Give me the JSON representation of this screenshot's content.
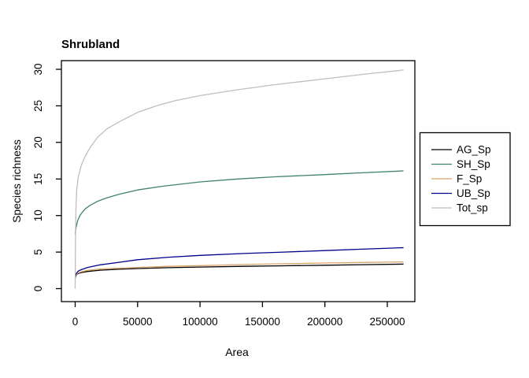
{
  "figure": {
    "title": "Shrubland",
    "xlabel": "Area",
    "ylabel": "Species richness",
    "background": "#ffffff",
    "axis_color": "#000000",
    "text_color": "#000000"
  },
  "chart_data": {
    "type": "line",
    "title": "Shrubland",
    "xlabel": "Area",
    "ylabel": "Species richness",
    "xlim": [
      0,
      263000
    ],
    "ylim": [
      0,
      30
    ],
    "x_ticks": [
      0,
      50000,
      100000,
      150000,
      200000,
      250000
    ],
    "x_tick_labels": [
      "0",
      "50000",
      "100000",
      "150000",
      "200000",
      "250000"
    ],
    "y_ticks": [
      0,
      5,
      10,
      15,
      20,
      25,
      30
    ],
    "y_tick_labels": [
      "0",
      "5",
      "10",
      "15",
      "20",
      "25",
      "30"
    ],
    "grid": false,
    "legend_position": "right-outside",
    "series": [
      {
        "name": "AG_Sp",
        "color": "#000000",
        "points": [
          [
            100,
            1.45
          ],
          [
            500,
            1.75
          ],
          [
            1000,
            1.9
          ],
          [
            2500,
            2.08
          ],
          [
            5000,
            2.2
          ],
          [
            10000,
            2.35
          ],
          [
            20000,
            2.52
          ],
          [
            35000,
            2.65
          ],
          [
            50000,
            2.75
          ],
          [
            75000,
            2.87
          ],
          [
            100000,
            2.95
          ],
          [
            135000,
            3.05
          ],
          [
            167000,
            3.12
          ],
          [
            200000,
            3.2
          ],
          [
            230000,
            3.28
          ],
          [
            263000,
            3.35
          ]
        ]
      },
      {
        "name": "SH_Sp",
        "color": "#3F8173",
        "points": [
          [
            100,
            7.4
          ],
          [
            300,
            7.9
          ],
          [
            600,
            8.3
          ],
          [
            1000,
            8.6
          ],
          [
            2000,
            9.3
          ],
          [
            3500,
            9.9
          ],
          [
            5000,
            10.3
          ],
          [
            8000,
            10.9
          ],
          [
            12000,
            11.4
          ],
          [
            18000,
            11.95
          ],
          [
            25000,
            12.4
          ],
          [
            35000,
            12.9
          ],
          [
            50000,
            13.5
          ],
          [
            70000,
            14.0
          ],
          [
            100000,
            14.6
          ],
          [
            130000,
            15.0
          ],
          [
            160000,
            15.3
          ],
          [
            200000,
            15.6
          ],
          [
            230000,
            15.85
          ],
          [
            263000,
            16.1
          ]
        ]
      },
      {
        "name": "F_Sp",
        "color": "#D9A36A",
        "points": [
          [
            100,
            1.5
          ],
          [
            500,
            1.8
          ],
          [
            1000,
            1.95
          ],
          [
            2500,
            2.15
          ],
          [
            5000,
            2.3
          ],
          [
            10000,
            2.5
          ],
          [
            20000,
            2.67
          ],
          [
            35000,
            2.8
          ],
          [
            50000,
            2.9
          ],
          [
            75000,
            3.05
          ],
          [
            100000,
            3.15
          ],
          [
            135000,
            3.3
          ],
          [
            167000,
            3.4
          ],
          [
            200000,
            3.5
          ],
          [
            230000,
            3.58
          ],
          [
            263000,
            3.65
          ]
        ]
      },
      {
        "name": "UB_Sp",
        "color": "#00008B",
        "points": [
          [
            100,
            1.6
          ],
          [
            500,
            1.95
          ],
          [
            1000,
            2.1
          ],
          [
            2500,
            2.4
          ],
          [
            5000,
            2.6
          ],
          [
            10000,
            2.9
          ],
          [
            20000,
            3.25
          ],
          [
            35000,
            3.6
          ],
          [
            50000,
            3.95
          ],
          [
            75000,
            4.3
          ],
          [
            100000,
            4.55
          ],
          [
            135000,
            4.8
          ],
          [
            167000,
            5.0
          ],
          [
            200000,
            5.2
          ],
          [
            230000,
            5.4
          ],
          [
            263000,
            5.6
          ]
        ]
      },
      {
        "name": "Tot_sp",
        "color": "#BEBEBE",
        "points": [
          [
            30,
            0
          ],
          [
            150,
            4
          ],
          [
            300,
            8
          ],
          [
            600,
            11
          ],
          [
            1200,
            13.5
          ],
          [
            2500,
            15.3
          ],
          [
            5000,
            16.9
          ],
          [
            8000,
            18.1
          ],
          [
            12000,
            19.3
          ],
          [
            18000,
            20.7
          ],
          [
            25000,
            21.8
          ],
          [
            35000,
            22.8
          ],
          [
            50000,
            24.1
          ],
          [
            65000,
            25.0
          ],
          [
            80000,
            25.7
          ],
          [
            100000,
            26.4
          ],
          [
            130000,
            27.2
          ],
          [
            160000,
            27.9
          ],
          [
            200000,
            28.7
          ],
          [
            230000,
            29.3
          ],
          [
            263000,
            29.9
          ]
        ]
      }
    ]
  }
}
